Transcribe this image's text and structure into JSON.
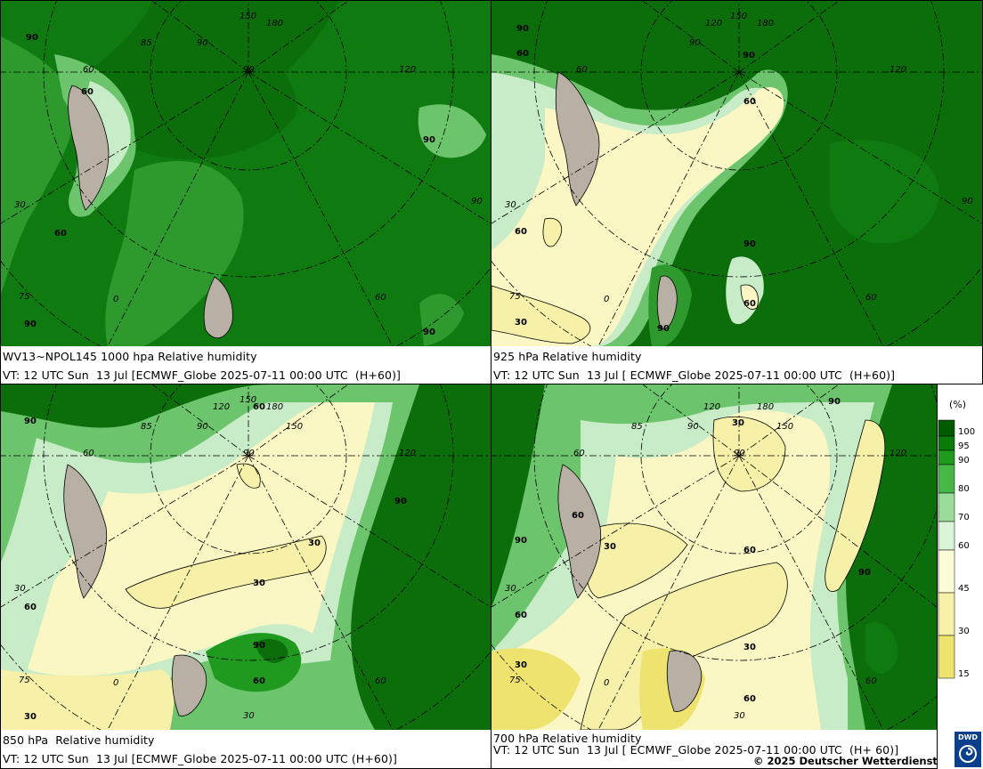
{
  "panels": [
    {
      "title": "WV13~NPOL145 1000 hpa Relative humidity",
      "validity": "VT: 12 UTC Sun  13 Jul [ECMWF_Globe 2025-07-11 00:00 UTC  (H+60)]",
      "contour_labels": [
        "90",
        "60",
        "60",
        "90",
        "90",
        "90"
      ],
      "grid_labels": [
        "150",
        "180",
        "120",
        "90",
        "85",
        "90",
        "60",
        "30",
        "0",
        "75",
        "60",
        "90"
      ]
    },
    {
      "title": "925 hPa Relative humidity",
      "validity": "VT: 12 UTC Sun  13 Jul [ ECMWF_Globe 2025-07-11 00:00 UTC  (H+60)]",
      "contour_labels": [
        "90",
        "60",
        "90",
        "60",
        "60",
        "90",
        "60",
        "30",
        "90"
      ],
      "grid_labels": [
        "150",
        "180",
        "120",
        "120",
        "90",
        "60",
        "30",
        "90",
        "0",
        "75",
        "60",
        "90"
      ]
    },
    {
      "title": "850 hPa  Relative humidity",
      "validity": "VT: 12 UTC Sun  13 Jul [ECMWF_Globe 2025-07-11 00:00 UTC (H+60)]",
      "contour_labels": [
        "90",
        "60",
        "90",
        "30",
        "90",
        "30",
        "60",
        "90",
        "60",
        "30"
      ],
      "grid_labels": [
        "150",
        "180",
        "120",
        "90",
        "85",
        "90",
        "60",
        "150",
        "120",
        "30",
        "0",
        "75",
        "60",
        "30"
      ]
    },
    {
      "title": "700 hPa Relative humidity",
      "validity": "VT: 12 UTC Sun  13 Jul [ ECMWF_Globe 2025-07-11 00:00 UTC  (H+ 60)]",
      "contour_labels": [
        "30",
        "90",
        "90",
        "60",
        "90",
        "60",
        "60",
        "30",
        "90",
        "30",
        "60",
        "30"
      ],
      "grid_labels": [
        "120",
        "180",
        "150",
        "90",
        "85",
        "90",
        "60",
        "120",
        "90",
        "30",
        "0",
        "75",
        "60",
        "30"
      ]
    }
  ],
  "legend": {
    "unit": "(%)",
    "ticks": [
      "100",
      "95",
      "90",
      "80",
      "70",
      "60",
      "45",
      "30",
      "15"
    ],
    "colors": [
      "#005a00",
      "#0a7a0a",
      "#1f9a1f",
      "#46b846",
      "#9bdc9b",
      "#d9f4d9",
      "#fcfcd8",
      "#f6f0a8",
      "#ede36e"
    ]
  },
  "copyright": "© 2025 Deutscher Wetterdienst",
  "logo": "DWD",
  "colors": {
    "very_moist": "#0b6e0b",
    "moist": "#2e9a2e",
    "medium": "#6cc46c",
    "light": "#c7ecc7",
    "dry": "#fbf7c4",
    "very_dry": "#efe47a",
    "land": "#b8b0a4"
  }
}
